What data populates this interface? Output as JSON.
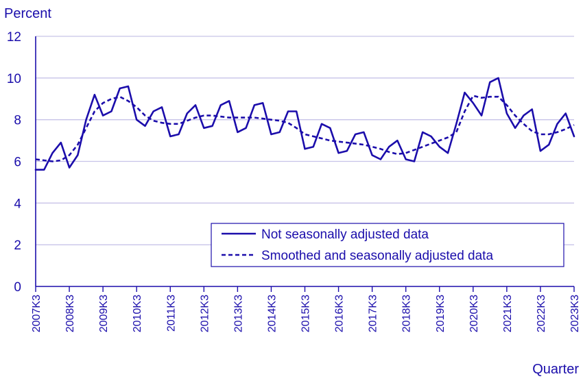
{
  "colors": {
    "series": "#1b0dab",
    "grid": "#c7c3e8",
    "axis": "#1b0dab",
    "text": "#1a0dab"
  },
  "chart_data": {
    "type": "line",
    "ylabel": "Percent",
    "xlabel": "Quarter",
    "ylim": [
      0,
      12
    ],
    "y_ticks": [
      "0",
      "2",
      "4",
      "6",
      "8",
      "10",
      "12"
    ],
    "x_tick_labels": [
      "2007K3",
      "2008K3",
      "2009K3",
      "2010K3",
      "2011K3",
      "2012K3",
      "2013K3",
      "2014K3",
      "2015K3",
      "2016K3",
      "2017K3",
      "2018K3",
      "2019K3",
      "2020K3",
      "2021K3",
      "2022K3",
      "2023K3"
    ],
    "grid": "horizontal",
    "legend_position": "bottom-right",
    "x": [
      "2007K3",
      "2007K4",
      "2008K1",
      "2008K2",
      "2008K3",
      "2008K4",
      "2009K1",
      "2009K2",
      "2009K3",
      "2009K4",
      "2010K1",
      "2010K2",
      "2010K3",
      "2010K4",
      "2011K1",
      "2011K2",
      "2011K3",
      "2011K4",
      "2012K1",
      "2012K2",
      "2012K3",
      "2012K4",
      "2013K1",
      "2013K2",
      "2013K3",
      "2013K4",
      "2014K1",
      "2014K2",
      "2014K3",
      "2014K4",
      "2015K1",
      "2015K2",
      "2015K3",
      "2015K4",
      "2016K1",
      "2016K2",
      "2016K3",
      "2016K4",
      "2017K1",
      "2017K2",
      "2017K3",
      "2017K4",
      "2018K1",
      "2018K2",
      "2018K3",
      "2018K4",
      "2019K1",
      "2019K2",
      "2019K3",
      "2019K4",
      "2020K1",
      "2020K2",
      "2020K3",
      "2020K4",
      "2021K1",
      "2021K2",
      "2021K3",
      "2021K4",
      "2022K1",
      "2022K2",
      "2022K3",
      "2022K4",
      "2023K1",
      "2023K2",
      "2023K3"
    ],
    "series": [
      {
        "name": "Not seasonally adjusted data",
        "style": "solid",
        "values": [
          5.6,
          5.6,
          6.4,
          6.9,
          5.7,
          6.3,
          8.0,
          9.2,
          8.2,
          8.4,
          9.5,
          9.6,
          8.0,
          7.7,
          8.4,
          8.6,
          7.2,
          7.3,
          8.3,
          8.7,
          7.6,
          7.7,
          8.7,
          8.9,
          7.4,
          7.6,
          8.7,
          8.8,
          7.3,
          7.4,
          8.4,
          8.4,
          6.6,
          6.7,
          7.8,
          7.6,
          6.4,
          6.5,
          7.3,
          7.4,
          6.3,
          6.1,
          6.7,
          7.0,
          6.1,
          6.0,
          7.4,
          7.2,
          6.7,
          6.4,
          7.8,
          9.3,
          8.8,
          8.2,
          9.8,
          10.0,
          8.3,
          7.6,
          8.2,
          8.5,
          6.5,
          6.8,
          7.8,
          8.3,
          7.2
        ]
      },
      {
        "name": "Smoothed and seasonally adjusted data",
        "style": "dashed",
        "values": [
          6.1,
          6.05,
          6.0,
          6.05,
          6.3,
          6.8,
          7.6,
          8.4,
          8.8,
          9.0,
          9.1,
          8.9,
          8.6,
          8.2,
          7.95,
          7.85,
          7.8,
          7.8,
          7.95,
          8.1,
          8.2,
          8.2,
          8.15,
          8.1,
          8.1,
          8.1,
          8.1,
          8.05,
          8.0,
          7.95,
          7.85,
          7.6,
          7.3,
          7.2,
          7.1,
          7.0,
          6.95,
          6.9,
          6.85,
          6.8,
          6.7,
          6.6,
          6.45,
          6.35,
          6.4,
          6.55,
          6.7,
          6.85,
          7.0,
          7.15,
          7.4,
          8.4,
          9.15,
          9.05,
          9.1,
          9.1,
          8.7,
          8.2,
          7.8,
          7.45,
          7.3,
          7.3,
          7.4,
          7.55,
          7.75
        ]
      }
    ]
  }
}
